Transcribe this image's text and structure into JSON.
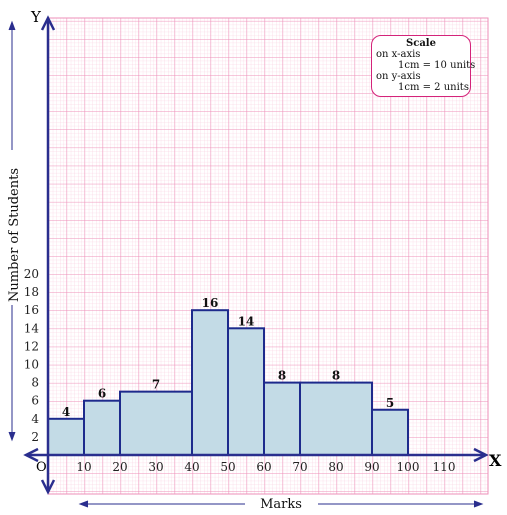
{
  "chart_data": {
    "type": "bar",
    "bins": [
      {
        "from": 0,
        "to": 10,
        "value": 4
      },
      {
        "from": 10,
        "to": 20,
        "value": 6
      },
      {
        "from": 20,
        "to": 40,
        "value": 7
      },
      {
        "from": 40,
        "to": 50,
        "value": 16
      },
      {
        "from": 50,
        "to": 60,
        "value": 14
      },
      {
        "from": 60,
        "to": 70,
        "value": 8
      },
      {
        "from": 70,
        "to": 90,
        "value": 8
      },
      {
        "from": 90,
        "to": 100,
        "value": 5
      }
    ],
    "x_ticks": [
      10,
      20,
      30,
      40,
      50,
      60,
      70,
      80,
      90,
      100,
      110
    ],
    "y_ticks": [
      2,
      4,
      6,
      8,
      10,
      12,
      14,
      16,
      18,
      20
    ],
    "xlim": [
      0,
      120
    ],
    "ylim": [
      0,
      24
    ],
    "xlabel": "Marks",
    "ylabel": "Number of Students",
    "x_axis_name": "X",
    "y_axis_name": "Y",
    "origin_label": "O",
    "grid": true,
    "colors": {
      "bar_fill": "#c3dbe6",
      "bar_stroke": "#1d2a8c",
      "grid": "#f2a3c4",
      "axis": "#2a2e8e"
    },
    "scale_box": {
      "title": "Scale",
      "x_line": "on x-axis",
      "x_value": "1cm = 10 units",
      "y_line": "on y-axis",
      "y_value": "1cm = 2 units"
    }
  }
}
